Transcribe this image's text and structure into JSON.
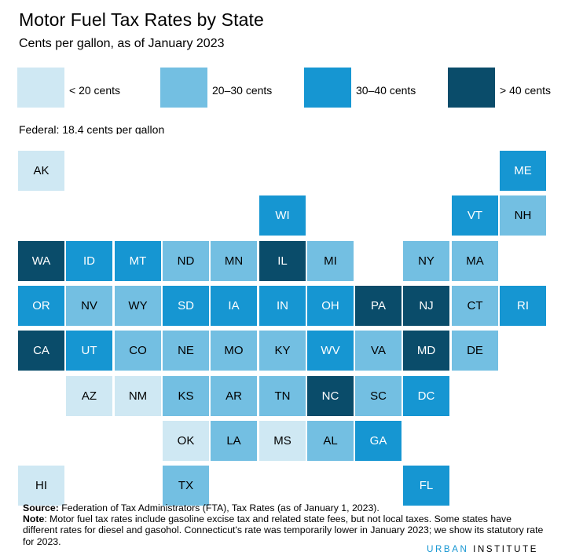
{
  "title": "Motor Fuel Tax Rates by State",
  "subtitle": "Cents per gallon, as of January 2023",
  "legend": [
    {
      "label": "< 20 cents",
      "color": "#cfe8f3"
    },
    {
      "label": "20–30 cents",
      "color": "#73bfe2"
    },
    {
      "label": "30–40 cents",
      "color": "#1696d2"
    },
    {
      "label": "> 40 cents",
      "color": "#0a4c6a"
    }
  ],
  "federal": "Federal: 18.4 cents per gallon",
  "states": [
    {
      "abbr": "AK",
      "tier": 1
    },
    {
      "abbr": "ME",
      "tier": 3
    },
    {
      "abbr": "WI",
      "tier": 3
    },
    {
      "abbr": "VT",
      "tier": 3
    },
    {
      "abbr": "NH",
      "tier": 2
    },
    {
      "abbr": "WA",
      "tier": 4
    },
    {
      "abbr": "ID",
      "tier": 3
    },
    {
      "abbr": "MT",
      "tier": 3
    },
    {
      "abbr": "ND",
      "tier": 2
    },
    {
      "abbr": "MN",
      "tier": 2
    },
    {
      "abbr": "IL",
      "tier": 4
    },
    {
      "abbr": "MI",
      "tier": 2
    },
    {
      "abbr": "NY",
      "tier": 2
    },
    {
      "abbr": "MA",
      "tier": 2
    },
    {
      "abbr": "OR",
      "tier": 3
    },
    {
      "abbr": "NV",
      "tier": 2
    },
    {
      "abbr": "WY",
      "tier": 2
    },
    {
      "abbr": "SD",
      "tier": 3
    },
    {
      "abbr": "IA",
      "tier": 3
    },
    {
      "abbr": "IN",
      "tier": 3
    },
    {
      "abbr": "OH",
      "tier": 3
    },
    {
      "abbr": "PA",
      "tier": 4
    },
    {
      "abbr": "NJ",
      "tier": 4
    },
    {
      "abbr": "CT",
      "tier": 2
    },
    {
      "abbr": "RI",
      "tier": 3
    },
    {
      "abbr": "CA",
      "tier": 4
    },
    {
      "abbr": "UT",
      "tier": 3
    },
    {
      "abbr": "CO",
      "tier": 2
    },
    {
      "abbr": "NE",
      "tier": 2
    },
    {
      "abbr": "MO",
      "tier": 2
    },
    {
      "abbr": "KY",
      "tier": 2
    },
    {
      "abbr": "WV",
      "tier": 3
    },
    {
      "abbr": "VA",
      "tier": 2
    },
    {
      "abbr": "MD",
      "tier": 4
    },
    {
      "abbr": "DE",
      "tier": 2
    },
    {
      "abbr": "AZ",
      "tier": 1
    },
    {
      "abbr": "NM",
      "tier": 1
    },
    {
      "abbr": "KS",
      "tier": 2
    },
    {
      "abbr": "AR",
      "tier": 2
    },
    {
      "abbr": "TN",
      "tier": 2
    },
    {
      "abbr": "NC",
      "tier": 4
    },
    {
      "abbr": "SC",
      "tier": 2
    },
    {
      "abbr": "DC",
      "tier": 3
    },
    {
      "abbr": "OK",
      "tier": 1
    },
    {
      "abbr": "LA",
      "tier": 2
    },
    {
      "abbr": "MS",
      "tier": 1
    },
    {
      "abbr": "AL",
      "tier": 2
    },
    {
      "abbr": "GA",
      "tier": 3
    },
    {
      "abbr": "HI",
      "tier": 1
    },
    {
      "abbr": "TX",
      "tier": 2
    },
    {
      "abbr": "FL",
      "tier": 3
    }
  ],
  "source_label": "Source:",
  "source_text": " Federation of Tax Administrators (FTA), Tax Rates (as of January 1, 2023).",
  "note_label": "Note",
  "note_text": ": Motor fuel tax rates include gasoline excise tax and related state fees, but not local taxes. Some states have different rates for diesel and gasohol. Connecticut's rate was temporarily lower in January 2023; we show its statutory rate for 2023.",
  "logo_part1": "URBAN",
  "logo_part2": " INSTITUTE"
}
